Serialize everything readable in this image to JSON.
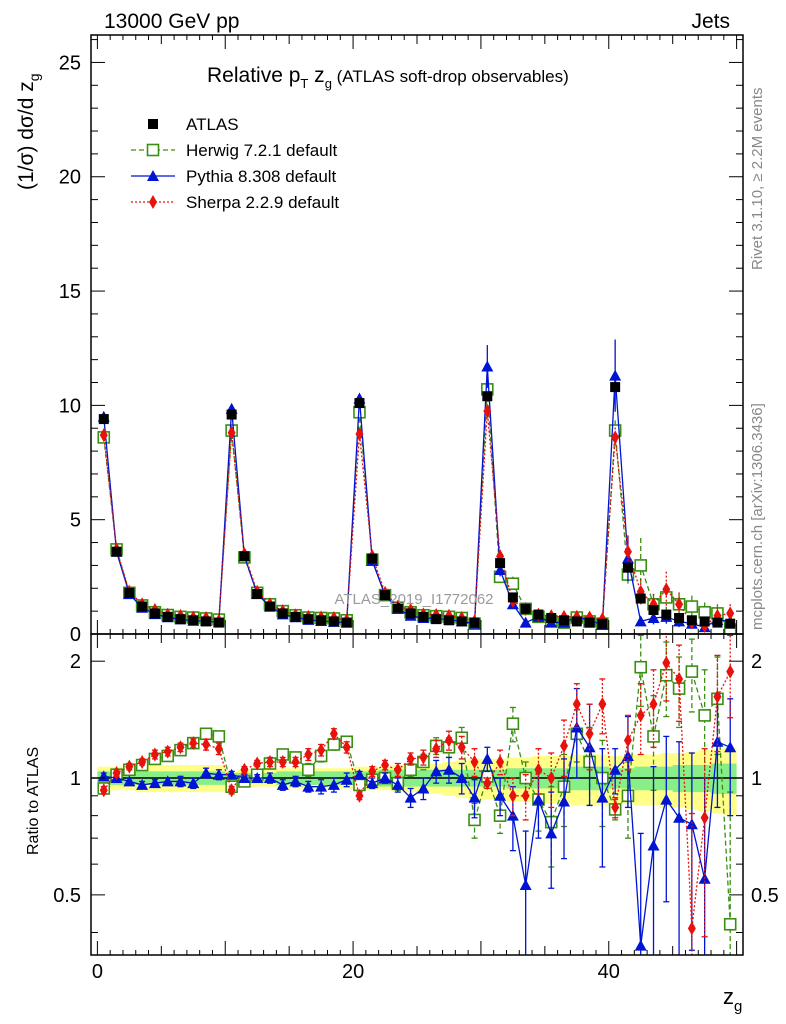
{
  "header": {
    "left": "13000 GeV pp",
    "right": "Jets"
  },
  "side": {
    "rivet": "Rivet 3.1.10, ≥ 2.2M events",
    "mcplots": "mcplots.cern.ch [arXiv:1306.3436]"
  },
  "chart_data": {
    "type": "scatter",
    "title": "Relative pT zg (ATLAS soft-drop observables)",
    "title_main": "Relative p",
    "title_sub": "T",
    "title_mid": " z",
    "title_sub2": "g",
    "title_suffix": " (ATLAS soft-drop observables)",
    "watermark": "ATLAS_2019_I1772062",
    "xlabel": "z",
    "xlabel_sub": "g",
    "ylabel": "(1/σ) dσ/d z",
    "ylabel_sub": "g",
    "ratio_ylabel": "Ratio to ATLAS",
    "xlim": [
      -0.5,
      50.5
    ],
    "ylim": [
      0,
      26.2
    ],
    "ratio_ylim": [
      0.35,
      2.35
    ],
    "x_ticks": [
      "0",
      "20",
      "40"
    ],
    "x_tick_values": [
      0,
      20,
      40
    ],
    "y_ticks": [
      "0",
      "5",
      "10",
      "15",
      "20",
      "25"
    ],
    "y_tick_values": [
      0,
      5,
      10,
      15,
      20,
      25
    ],
    "ratio_ticks": [
      "0.5",
      "1",
      "2"
    ],
    "ratio_tick_values": [
      0.5,
      1,
      2
    ],
    "colors": {
      "data": "#000000",
      "herwig": "#3a8f12",
      "pythia": "#0015d4",
      "sherpa": "#e8120c",
      "band_inner": "#88ee88",
      "band_outer": "#ffff88"
    },
    "legend": [
      {
        "label": "ATLAS",
        "key": "data"
      },
      {
        "label": "Herwig 7.2.1 default",
        "key": "herwig"
      },
      {
        "label": "Pythia 8.308 default",
        "key": "pythia"
      },
      {
        "label": "Sherpa 2.2.9 default",
        "key": "sherpa"
      }
    ],
    "x": [
      0.5,
      1.5,
      2.5,
      3.5,
      4.5,
      5.5,
      6.5,
      7.5,
      8.5,
      9.5,
      10.5,
      11.5,
      12.5,
      13.5,
      14.5,
      15.5,
      16.5,
      17.5,
      18.5,
      19.5,
      20.5,
      21.5,
      22.5,
      23.5,
      24.5,
      25.5,
      26.5,
      27.5,
      28.5,
      29.5,
      30.5,
      31.5,
      32.5,
      33.5,
      34.5,
      35.5,
      36.5,
      37.5,
      38.5,
      39.5,
      40.5,
      41.5,
      42.5,
      43.5,
      44.5,
      45.5,
      46.5,
      47.5,
      48.5,
      49.5
    ],
    "series": [
      {
        "name": "ATLAS",
        "key": "data",
        "values": [
          9.4,
          3.6,
          1.8,
          1.2,
          0.9,
          0.75,
          0.65,
          0.6,
          0.55,
          0.5,
          9.6,
          3.4,
          1.75,
          1.2,
          0.9,
          0.75,
          0.65,
          0.6,
          0.55,
          0.5,
          10.1,
          3.3,
          1.7,
          1.15,
          0.9,
          0.75,
          0.65,
          0.6,
          0.55,
          0.5,
          10.4,
          3.1,
          1.6,
          1.1,
          0.85,
          0.7,
          0.6,
          0.55,
          0.5,
          0.45,
          10.8,
          2.9,
          1.55,
          1.05,
          0.85,
          0.7,
          0.6,
          0.55,
          0.5,
          0.45
        ],
        "ratio_err_inner": [
          0.04,
          0.04,
          0.04,
          0.04,
          0.04,
          0.04,
          0.04,
          0.04,
          0.04,
          0.04,
          0.03,
          0.03,
          0.03,
          0.03,
          0.04,
          0.04,
          0.04,
          0.04,
          0.04,
          0.04,
          0.04,
          0.04,
          0.05,
          0.05,
          0.05,
          0.05,
          0.05,
          0.05,
          0.05,
          0.05,
          0.05,
          0.05,
          0.06,
          0.06,
          0.06,
          0.06,
          0.06,
          0.07,
          0.07,
          0.07,
          0.06,
          0.06,
          0.07,
          0.07,
          0.07,
          0.08,
          0.08,
          0.08,
          0.09,
          0.09
        ],
        "ratio_err_outer": [
          0.07,
          0.07,
          0.07,
          0.08,
          0.08,
          0.08,
          0.08,
          0.08,
          0.08,
          0.08,
          0.04,
          0.05,
          0.05,
          0.05,
          0.06,
          0.06,
          0.06,
          0.06,
          0.06,
          0.06,
          0.07,
          0.07,
          0.07,
          0.08,
          0.08,
          0.08,
          0.09,
          0.1,
          0.11,
          0.12,
          0.12,
          0.12,
          0.13,
          0.13,
          0.14,
          0.14,
          0.14,
          0.15,
          0.15,
          0.15,
          0.14,
          0.14,
          0.15,
          0.15,
          0.16,
          0.16,
          0.17,
          0.18,
          0.19,
          0.2
        ]
      },
      {
        "name": "Herwig 7.2.1 default",
        "key": "herwig",
        "values": [
          8.6,
          3.7,
          1.8,
          1.25,
          0.95,
          0.83,
          0.75,
          0.72,
          0.68,
          0.63,
          8.9,
          3.35,
          1.8,
          1.3,
          1.0,
          0.82,
          0.72,
          0.7,
          0.68,
          0.6,
          9.7,
          3.25,
          1.7,
          1.15,
          0.95,
          0.82,
          0.78,
          0.75,
          0.7,
          0.45,
          10.7,
          2.5,
          2.2,
          1.1,
          0.75,
          0.56,
          0.5,
          0.72,
          0.55,
          0.45,
          8.9,
          2.6,
          3.0,
          1.3,
          1.6,
          1.3,
          1.2,
          0.95,
          0.9,
          0.2
        ],
        "ratio": [
          0.94,
          1.02,
          1.05,
          1.08,
          1.12,
          1.14,
          1.18,
          1.23,
          1.3,
          1.28,
          0.95,
          0.98,
          1.02,
          1.09,
          1.15,
          1.13,
          1.05,
          1.14,
          1.22,
          1.24,
          0.96,
          0.99,
          1.0,
          0.97,
          1.05,
          1.1,
          1.21,
          1.2,
          1.27,
          0.78,
          1.01,
          0.8,
          1.38,
          1.0,
          0.88,
          0.77,
          0.95,
          1.3,
          1.1,
          1.0,
          0.83,
          0.9,
          1.93,
          1.28,
          1.84,
          1.7,
          1.88,
          1.45,
          1.6,
          0.42
        ],
        "ratio_err": [
          0.02,
          0.02,
          0.02,
          0.03,
          0.03,
          0.03,
          0.03,
          0.03,
          0.04,
          0.04,
          0.02,
          0.02,
          0.03,
          0.03,
          0.03,
          0.03,
          0.04,
          0.04,
          0.04,
          0.04,
          0.02,
          0.03,
          0.03,
          0.04,
          0.04,
          0.05,
          0.06,
          0.07,
          0.08,
          0.08,
          0.03,
          0.08,
          0.14,
          0.1,
          0.15,
          0.18,
          0.2,
          0.2,
          0.25,
          0.25,
          0.05,
          0.2,
          0.4,
          0.35,
          0.4,
          0.35,
          0.4,
          0.45,
          0.45,
          0.5
        ]
      },
      {
        "name": "Pythia 8.308 default",
        "key": "pythia",
        "values": [
          9.5,
          3.6,
          1.75,
          1.15,
          0.87,
          0.73,
          0.64,
          0.58,
          0.57,
          0.51,
          9.85,
          3.4,
          1.75,
          1.2,
          0.86,
          0.73,
          0.62,
          0.57,
          0.53,
          0.5,
          10.3,
          3.2,
          1.7,
          1.1,
          0.8,
          0.7,
          0.68,
          0.63,
          0.55,
          0.45,
          11.7,
          2.8,
          1.3,
          0.5,
          0.75,
          0.5,
          0.5,
          0.75,
          0.6,
          0.4,
          11.3,
          3.3,
          0.55,
          0.7,
          0.75,
          0.55,
          0.45,
          0.3,
          0.62,
          0.55
        ],
        "ratio": [
          1.01,
          1.0,
          0.98,
          0.96,
          0.97,
          0.98,
          0.98,
          0.97,
          1.03,
          1.02,
          1.02,
          1.0,
          1.0,
          1.0,
          0.96,
          0.98,
          0.95,
          0.95,
          0.96,
          0.99,
          1.02,
          0.97,
          1.0,
          0.96,
          0.89,
          0.94,
          1.04,
          1.05,
          1.0,
          0.89,
          1.12,
          0.9,
          0.8,
          0.53,
          0.88,
          0.72,
          0.87,
          1.35,
          1.2,
          0.89,
          1.05,
          1.14,
          0.37,
          0.67,
          0.88,
          0.79,
          0.76,
          0.55,
          1.24,
          1.2
        ],
        "ratio_err": [
          0.02,
          0.02,
          0.02,
          0.02,
          0.02,
          0.02,
          0.03,
          0.03,
          0.03,
          0.03,
          0.02,
          0.02,
          0.02,
          0.03,
          0.03,
          0.03,
          0.03,
          0.04,
          0.04,
          0.04,
          0.02,
          0.03,
          0.03,
          0.04,
          0.05,
          0.06,
          0.07,
          0.08,
          0.09,
          0.1,
          0.08,
          0.1,
          0.15,
          0.2,
          0.18,
          0.2,
          0.25,
          0.35,
          0.35,
          0.3,
          0.14,
          0.3,
          0.35,
          0.4,
          0.4,
          0.45,
          0.4,
          0.45,
          0.4,
          0.4
        ]
      },
      {
        "name": "Sherpa 2.2.9 default",
        "key": "sherpa",
        "values": [
          8.7,
          3.7,
          1.85,
          1.3,
          1.05,
          0.85,
          0.8,
          0.72,
          0.7,
          0.58,
          8.8,
          3.5,
          1.85,
          1.3,
          1.0,
          0.82,
          0.75,
          0.72,
          0.7,
          0.6,
          8.75,
          3.4,
          1.8,
          1.2,
          1.05,
          0.86,
          0.83,
          0.8,
          0.7,
          0.55,
          9.75,
          3.4,
          1.45,
          1.1,
          0.85,
          0.78,
          0.75,
          0.75,
          0.72,
          0.65,
          8.6,
          3.6,
          1.85,
          1.3,
          1.95,
          1.3,
          0.5,
          0.35,
          0.8,
          0.9
        ],
        "ratio": [
          0.93,
          1.03,
          1.07,
          1.1,
          1.15,
          1.17,
          1.2,
          1.23,
          1.22,
          1.19,
          0.93,
          1.05,
          1.09,
          1.1,
          1.1,
          1.1,
          1.15,
          1.18,
          1.3,
          1.2,
          0.9,
          1.04,
          1.08,
          1.05,
          1.12,
          1.13,
          1.19,
          1.25,
          1.2,
          1.1,
          0.97,
          1.1,
          0.9,
          0.9,
          1.05,
          1.0,
          1.21,
          1.55,
          1.3,
          1.55,
          0.84,
          1.25,
          1.45,
          1.55,
          1.98,
          1.8,
          0.41,
          0.79,
          1.62,
          1.88
        ],
        "ratio_err": [
          0.02,
          0.02,
          0.02,
          0.02,
          0.03,
          0.03,
          0.03,
          0.03,
          0.04,
          0.04,
          0.02,
          0.02,
          0.02,
          0.03,
          0.03,
          0.03,
          0.04,
          0.04,
          0.04,
          0.04,
          0.02,
          0.03,
          0.03,
          0.04,
          0.04,
          0.05,
          0.06,
          0.07,
          0.08,
          0.09,
          0.03,
          0.08,
          0.1,
          0.12,
          0.14,
          0.16,
          0.2,
          0.2,
          0.25,
          0.25,
          0.05,
          0.2,
          0.3,
          0.35,
          0.4,
          0.4,
          0.4,
          0.4,
          0.45,
          0.45
        ]
      }
    ]
  }
}
